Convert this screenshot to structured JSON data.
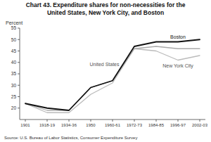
{
  "chart_data": {
    "type": "line",
    "title": "Chart 43. Expenditure shares for non-necessities for the\nUnited States, New York City, and Boston",
    "y_label": "Percent",
    "source": "Source: U.S. Bureau of Labor Statistics, Consumer Expenditure Survey",
    "categories": [
      "1901",
      "1918-19",
      "1934-36",
      "1950",
      "1960-61",
      "1972-73",
      "1984-85",
      "1996-97",
      "2002-03"
    ],
    "series": [
      {
        "name": "New York City",
        "color": "#bbbbbb",
        "values": [
          22,
          18,
          18,
          26,
          31,
          46,
          45,
          41,
          43
        ]
      },
      {
        "name": "United States",
        "color": "#aaaaaa",
        "values": [
          22,
          19,
          19,
          29,
          32,
          46,
          47,
          46,
          46
        ]
      },
      {
        "name": "Boston",
        "color": "#111111",
        "values": [
          22,
          20,
          19,
          29,
          32,
          47,
          49,
          49,
          50
        ]
      }
    ],
    "ylim": [
      15,
      55
    ],
    "yticks": [
      20,
      25,
      30,
      35,
      40,
      45,
      50,
      55
    ],
    "grid": false
  }
}
